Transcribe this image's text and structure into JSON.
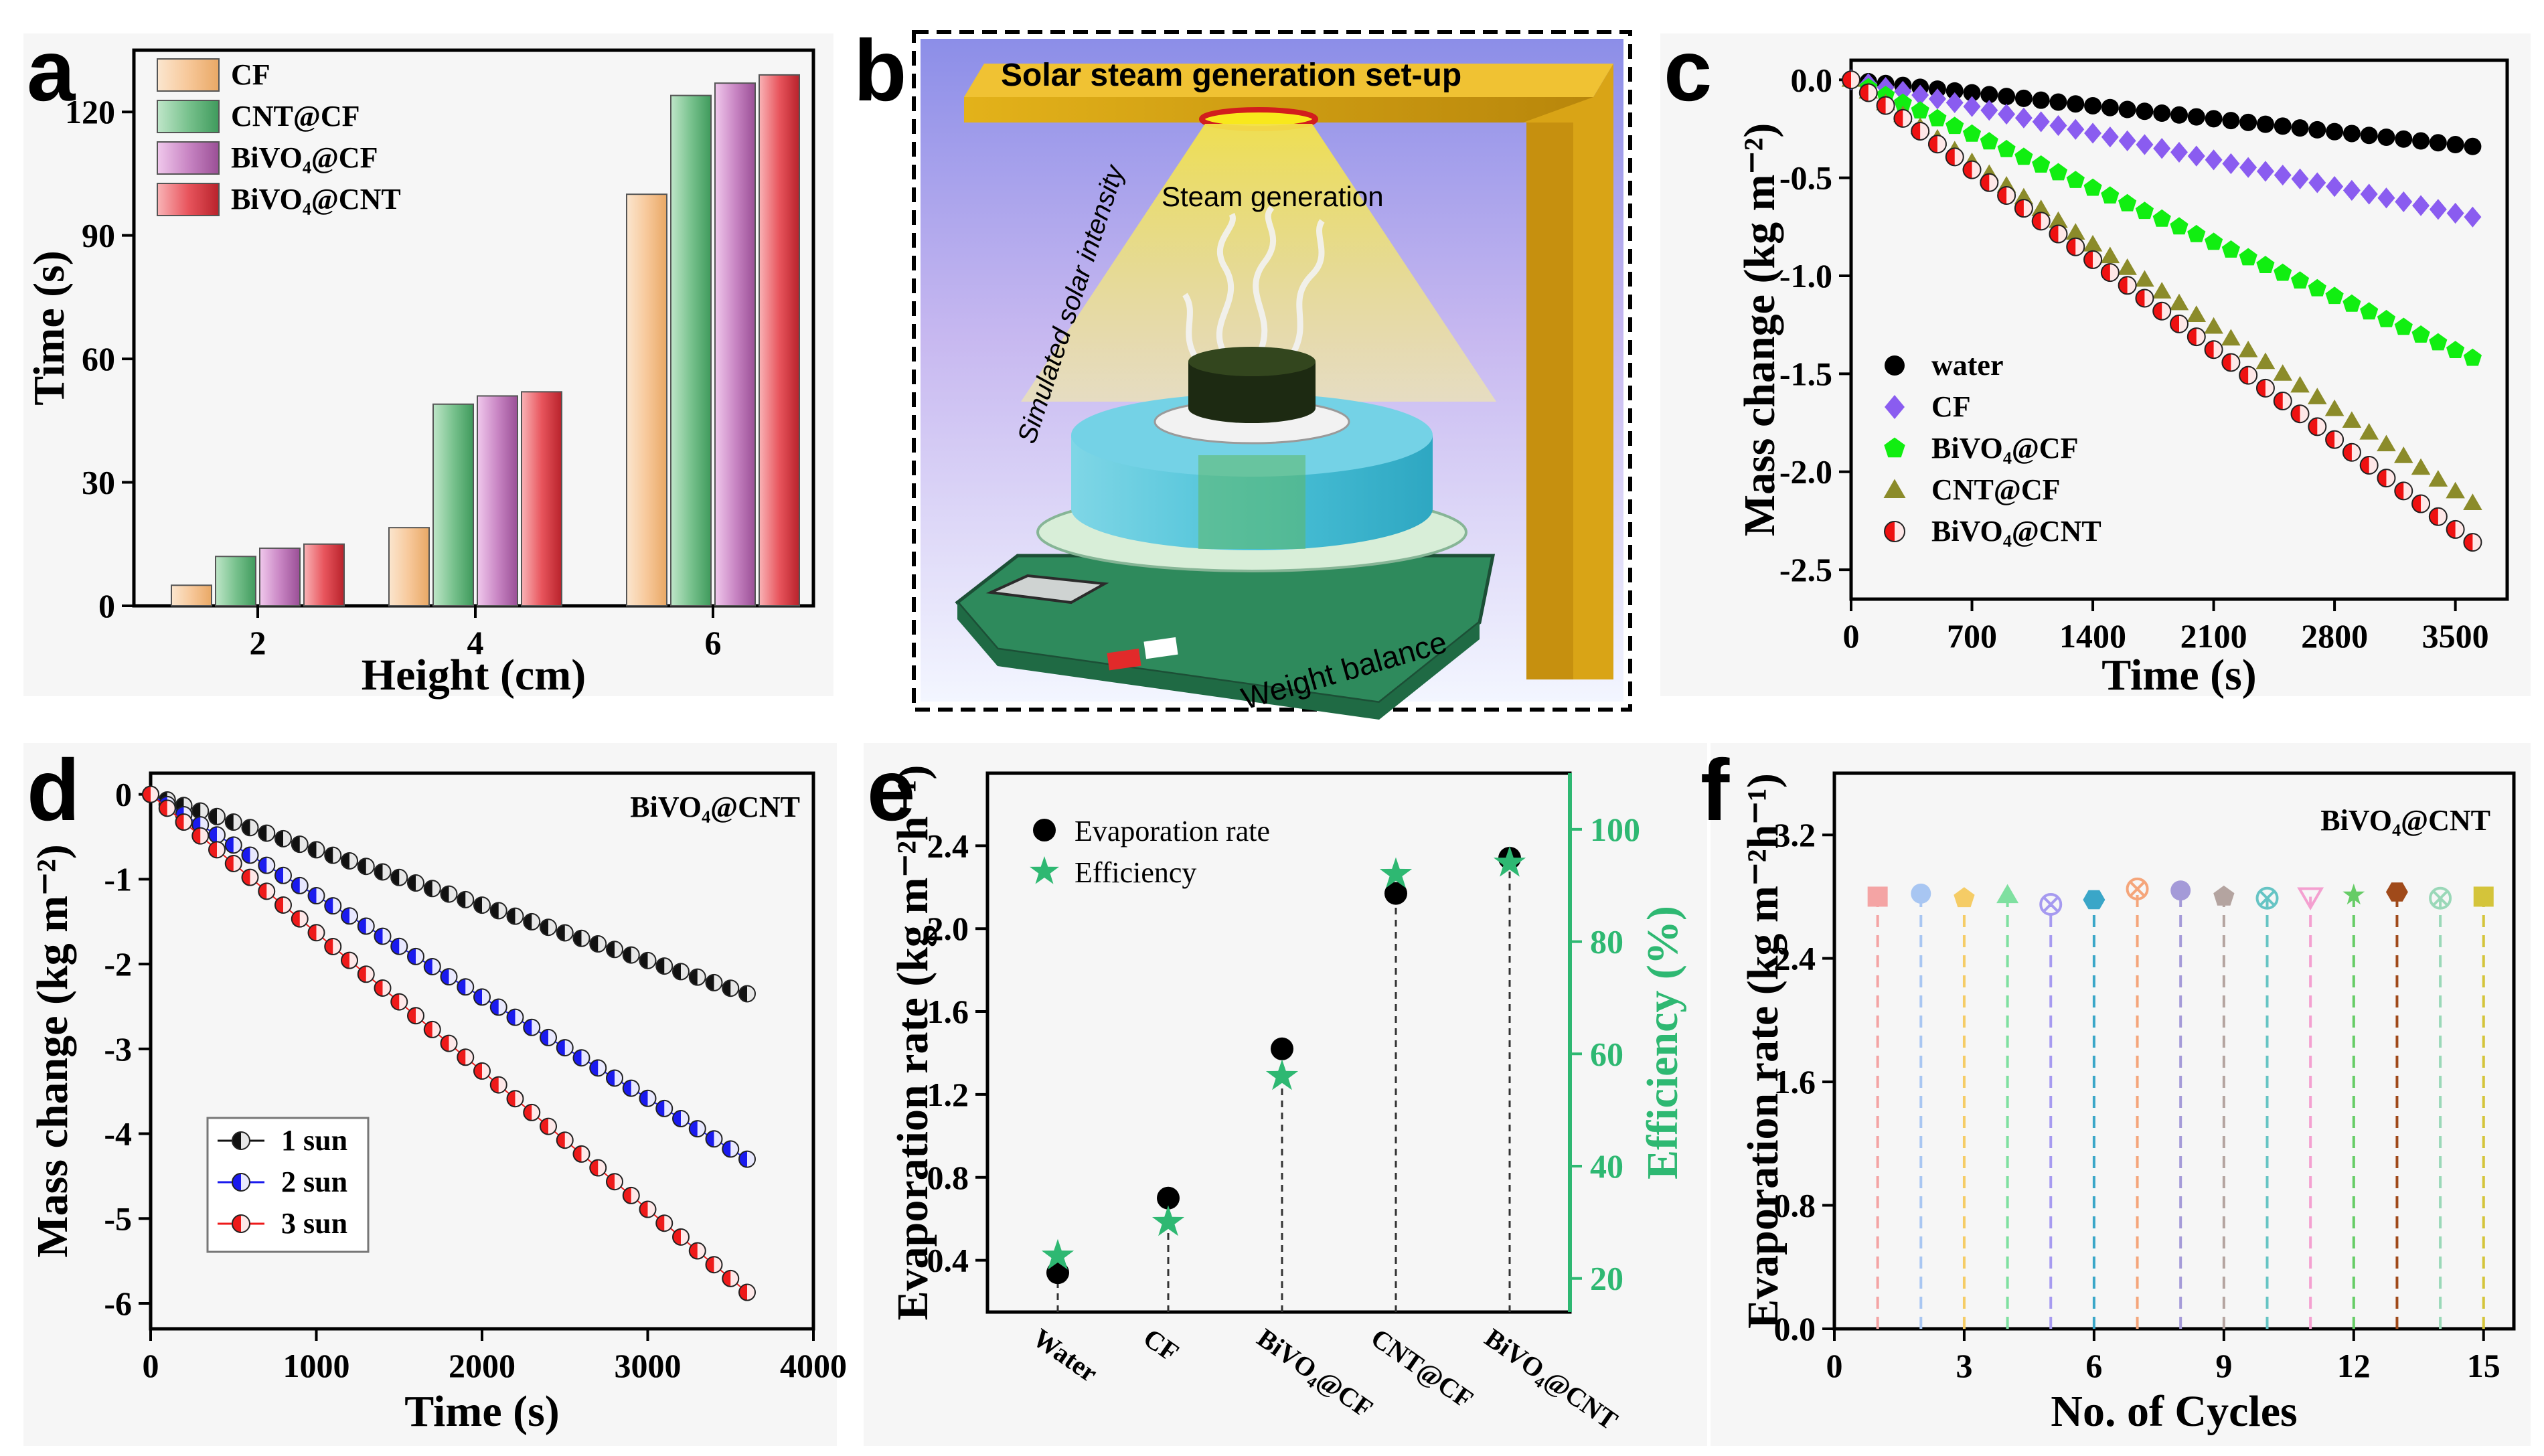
{
  "panels": {
    "a": "a",
    "b": "b",
    "c": "c",
    "d": "d",
    "e": "e",
    "f": "f"
  },
  "chart_data": [
    {
      "panel": "a",
      "type": "bar",
      "title": "",
      "xlabel": "Height (cm)",
      "ylabel": "Time (s)",
      "categories": [
        "2",
        "4",
        "6"
      ],
      "ylim": [
        0,
        135
      ],
      "yticks": [
        0,
        30,
        60,
        90,
        120
      ],
      "series": [
        {
          "name": "CF",
          "color": "#f6c794",
          "values": [
            5,
            19,
            100
          ]
        },
        {
          "name": "CNT@CF",
          "color": "#79c28e",
          "values": [
            12,
            49,
            124
          ]
        },
        {
          "name": "BiVO4@CF",
          "color": "#c986c4",
          "values": [
            14,
            51,
            127
          ]
        },
        {
          "name": "BiVO4@CNT",
          "color": "#e8555d",
          "values": [
            15,
            52,
            129
          ]
        }
      ],
      "legend": [
        "CF",
        "CNT@CF",
        "BiVO₄@CF",
        "BiVO₄@CNT"
      ]
    },
    {
      "panel": "c",
      "type": "scatter",
      "xlabel": "Time (s)",
      "ylabel": "Mass change (kg m⁻²)",
      "xlim": [
        0,
        3800
      ],
      "ylim": [
        -2.65,
        0.1
      ],
      "xticks": [
        0,
        700,
        1400,
        2100,
        2800,
        3500
      ],
      "yticks": [
        0.0,
        -0.5,
        -1.0,
        -1.5,
        -2.0,
        -2.5
      ],
      "ytick_labels": [
        "0.0",
        "-0.5",
        "-1.0",
        "-1.5",
        "-2.0",
        "-2.5"
      ],
      "x_end": 3600,
      "n_points": 37,
      "series": [
        {
          "name": "water",
          "label": "water",
          "color": "#000000",
          "marker": "circle",
          "end": -0.34
        },
        {
          "name": "CF",
          "label": "CF",
          "color": "#8a5cf0",
          "marker": "diamond",
          "end": -0.7
        },
        {
          "name": "BiVO4@CF",
          "label": "BiVO₄@CF",
          "color": "#11ee11",
          "marker": "pentagon",
          "end": -1.42
        },
        {
          "name": "CNT@CF",
          "label": "CNT@CF",
          "color": "#8b8b2a",
          "marker": "triangle",
          "end": -2.16
        },
        {
          "name": "BiVO4@CNT",
          "label": "BiVO₄@CNT",
          "color": "#ee1111",
          "marker": "circle",
          "end": -2.36
        }
      ]
    },
    {
      "panel": "d",
      "type": "scatter",
      "annotation": "BiVO₄@CNT",
      "xlabel": "Time (s)",
      "ylabel": "Mass change (kg m⁻²)",
      "xlim": [
        0,
        4000
      ],
      "ylim": [
        -6.3,
        0.25
      ],
      "xticks": [
        0,
        1000,
        2000,
        3000,
        4000
      ],
      "yticks": [
        0,
        -1,
        -2,
        -3,
        -4,
        -5,
        -6
      ],
      "x_end": 3600,
      "n_points": 37,
      "series": [
        {
          "name": "1 sun",
          "color": "#111111",
          "end": -2.35
        },
        {
          "name": "2 sun",
          "color": "#1a1aee",
          "end": -4.3
        },
        {
          "name": "3 sun",
          "color": "#ee1a1a",
          "end": -5.87
        }
      ]
    },
    {
      "panel": "e",
      "type": "scatter",
      "xlabel": "",
      "ylabel": "Evaporation rate (kg m⁻²h⁻¹)",
      "y2label": "Efficiency (%)",
      "categories": [
        "Water",
        "CF",
        "BiVO₄@CF",
        "CNT@CF",
        "BiVO₄@CNT"
      ],
      "ylim": [
        0.15,
        2.75
      ],
      "yticks": [
        0.4,
        0.8,
        1.2,
        1.6,
        2.0,
        2.4
      ],
      "y2lim": [
        14,
        110
      ],
      "y2ticks": [
        20,
        40,
        60,
        80,
        100
      ],
      "series": [
        {
          "name": "Evaporation rate",
          "axis": "left",
          "color": "#000000",
          "values": [
            0.34,
            0.7,
            1.42,
            2.17,
            2.34
          ]
        },
        {
          "name": "Efficiency",
          "axis": "right",
          "color": "#2eb872",
          "values": [
            24,
            30,
            56,
            92,
            94
          ]
        }
      ]
    },
    {
      "panel": "f",
      "type": "scatter",
      "annotation": "BiVO₄@CNT",
      "xlabel": "No. of Cycles",
      "ylabel": "Evaporation rate (kg m⁻²h⁻¹)",
      "xlim": [
        0,
        15.7
      ],
      "ylim": [
        0,
        3.6
      ],
      "xticks": [
        0,
        3,
        6,
        9,
        12,
        15
      ],
      "yticks": [
        0.0,
        0.8,
        1.6,
        2.4,
        3.2
      ],
      "ytick_labels": [
        "0.0",
        "0.8",
        "1.6",
        "2.4",
        "3.2"
      ],
      "x": [
        1,
        2,
        3,
        4,
        5,
        6,
        7,
        8,
        9,
        10,
        11,
        12,
        13,
        14,
        15
      ],
      "values": [
        2.8,
        2.82,
        2.79,
        2.81,
        2.75,
        2.78,
        2.85,
        2.84,
        2.8,
        2.79,
        2.8,
        2.81,
        2.83,
        2.79,
        2.8
      ],
      "colors": [
        "#f4a4a4",
        "#a8c6f2",
        "#f5cc66",
        "#7fe0a0",
        "#a69af0",
        "#3aa6c8",
        "#f5a57a",
        "#a49ad8",
        "#b4a4a0",
        "#66c4c4",
        "#f4a0d0",
        "#66cc66",
        "#a04a1a",
        "#9ad8b8",
        "#d4c43a"
      ]
    }
  ],
  "schematic": {
    "title": "Solar steam generation set-up",
    "steam_label": "Steam generation",
    "light_label": "Simulated solar intensity",
    "balance_label": "Weight balance"
  }
}
